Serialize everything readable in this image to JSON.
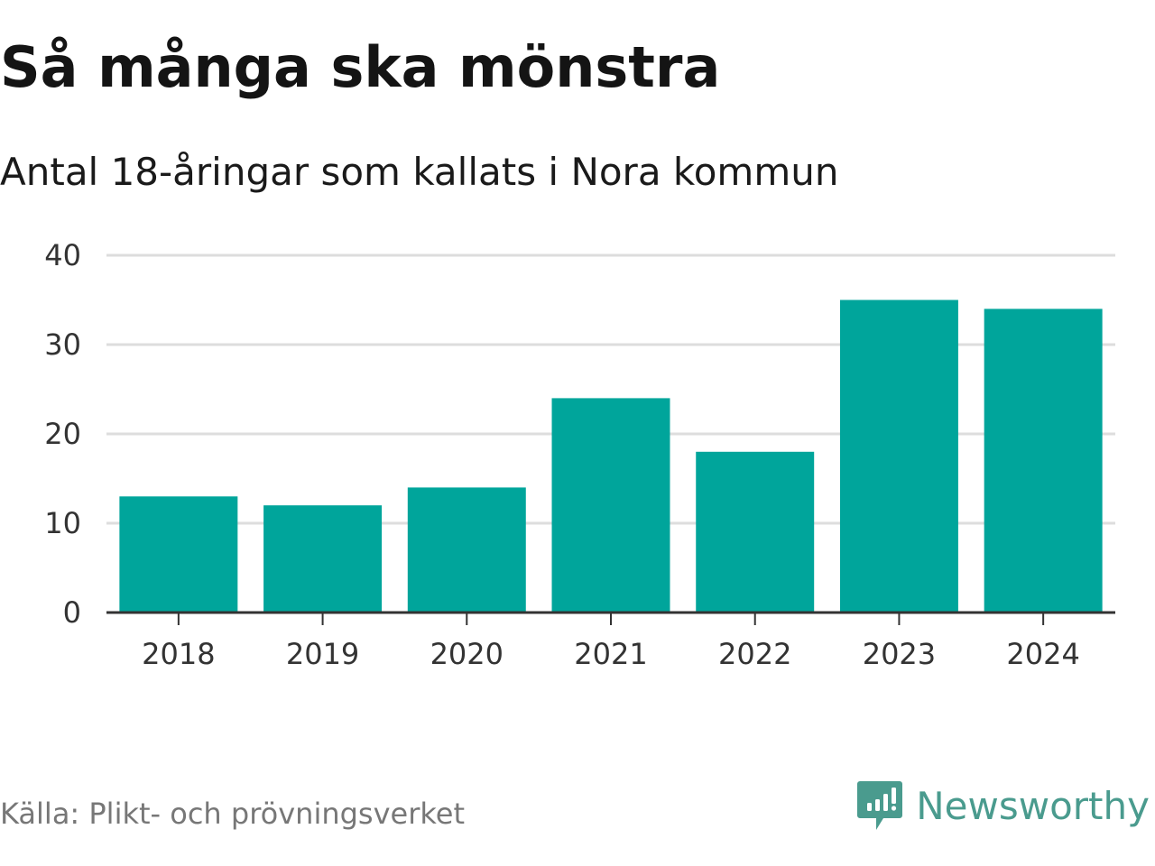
{
  "chart_data": {
    "type": "bar",
    "title": "Så många ska mönstra",
    "subtitle": "Antal 18-åringar som kallats i Nora kommun",
    "categories": [
      "2018",
      "2019",
      "2020",
      "2021",
      "2022",
      "2023",
      "2024"
    ],
    "values": [
      13,
      12,
      14,
      24,
      18,
      35,
      34
    ],
    "xlabel": "",
    "ylabel": "",
    "ylim": [
      0,
      40
    ],
    "yticks": [
      0,
      10,
      20,
      30,
      40
    ],
    "grid": true,
    "bar_color": "#00a59b",
    "grid_color": "#dddddd",
    "axis_color": "#333333"
  },
  "footer": {
    "source": "Källa: Plikt- och prövningsverket",
    "brand": "Newsworthy",
    "brand_color": "#4a9b8e",
    "logo_icon": "newsworthy-logo-icon"
  }
}
